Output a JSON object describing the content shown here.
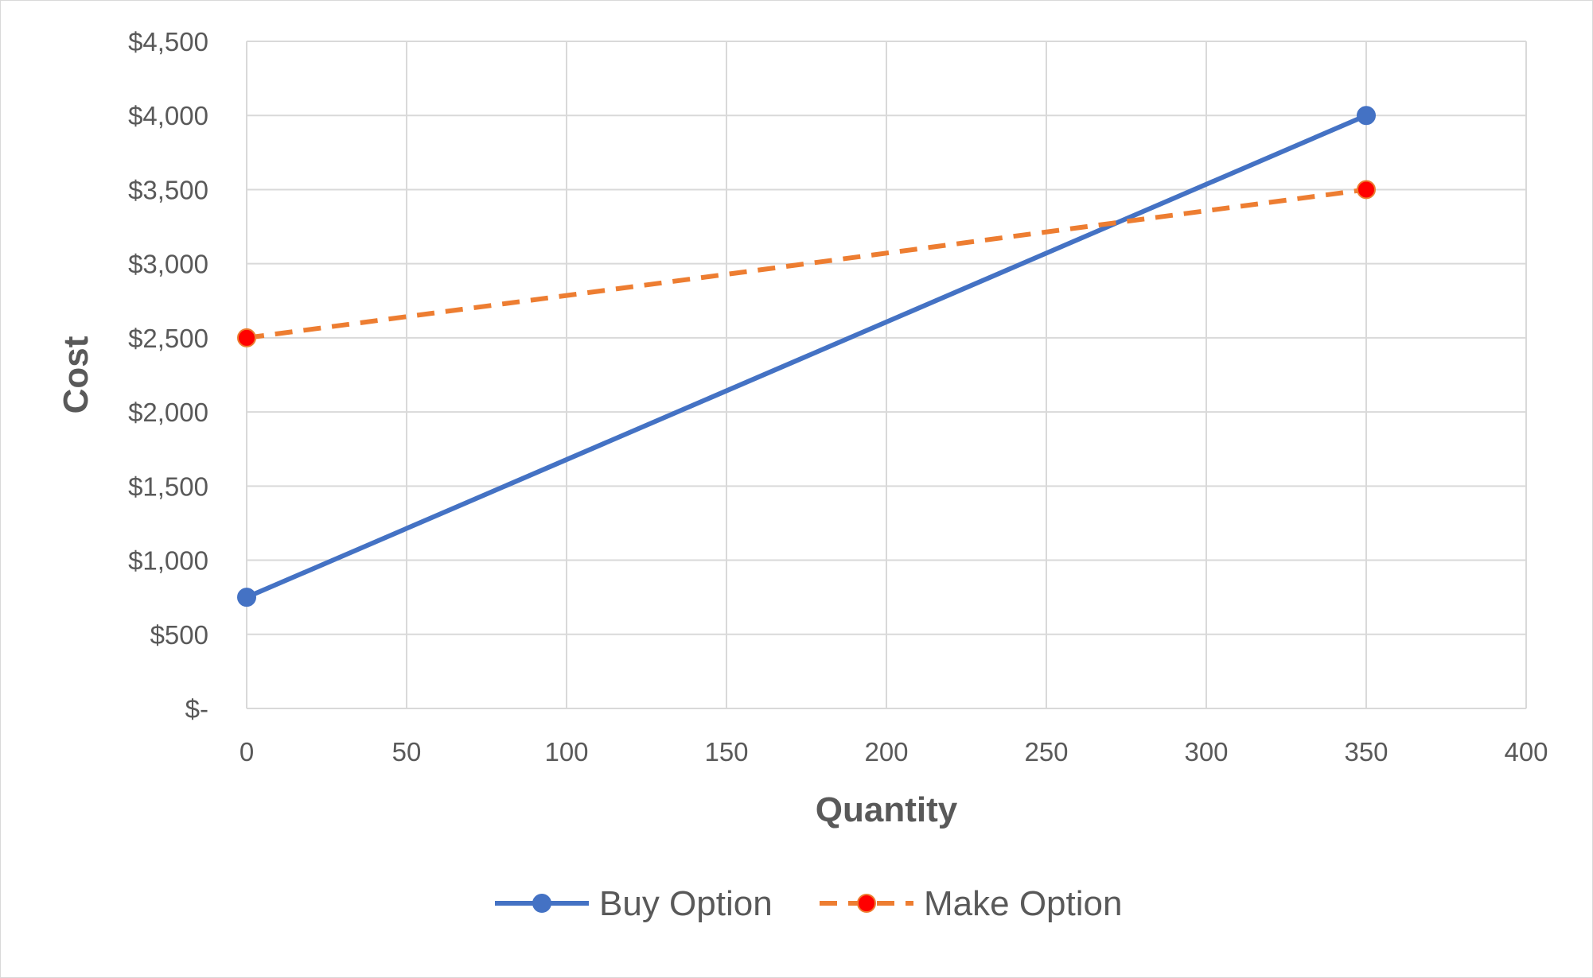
{
  "chart_data": {
    "type": "line",
    "title": "",
    "xlabel": "Quantity",
    "ylabel": "Cost",
    "xlim": [
      0,
      400
    ],
    "ylim": [
      0,
      4500
    ],
    "x_ticks": [
      0,
      50,
      100,
      150,
      200,
      250,
      300,
      350,
      400
    ],
    "x_tick_labels": [
      "0",
      "50",
      "100",
      "150",
      "200",
      "250",
      "300",
      "350",
      "400"
    ],
    "y_ticks": [
      0,
      500,
      1000,
      1500,
      2000,
      2500,
      3000,
      3500,
      4000,
      4500
    ],
    "y_tick_labels": [
      "$-",
      "$500",
      "$1,000",
      "$1,500",
      "$2,000",
      "$2,500",
      "$3,000",
      "$3,500",
      "$4,000",
      "$4,500"
    ],
    "grid": true,
    "legend_position": "bottom",
    "series": [
      {
        "name": "Buy Option",
        "x": [
          0,
          350
        ],
        "y": [
          750,
          4000
        ],
        "line_color": "#4472c4",
        "marker_color": "#4472c4",
        "line_style": "solid",
        "marker": "circle"
      },
      {
        "name": "Make Option",
        "x": [
          0,
          350
        ],
        "y": [
          2500,
          3500
        ],
        "line_color": "#ed7d31",
        "marker_color": "#ff0000",
        "line_style": "dashed",
        "marker": "circle"
      }
    ]
  }
}
